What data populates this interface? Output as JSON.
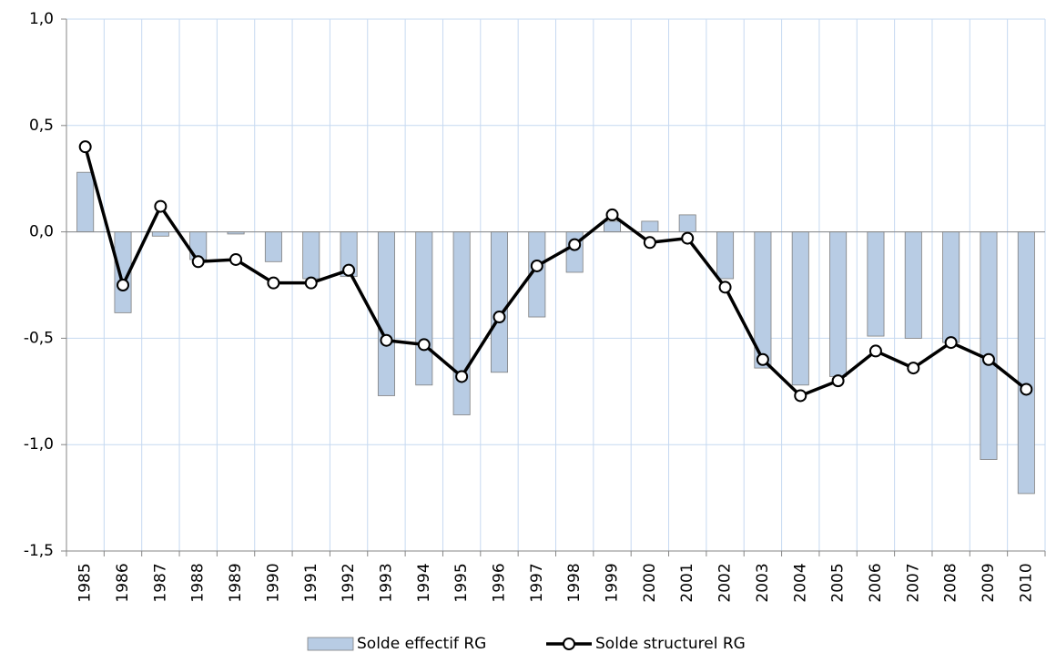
{
  "chart_data": {
    "type": "combo",
    "categories": [
      "1985",
      "1986",
      "1987",
      "1988",
      "1989",
      "1990",
      "1991",
      "1992",
      "1993",
      "1994",
      "1995",
      "1996",
      "1997",
      "1998",
      "1999",
      "2000",
      "2001",
      "2002",
      "2003",
      "2004",
      "2005",
      "2006",
      "2007",
      "2008",
      "2009",
      "2010"
    ],
    "series": [
      {
        "name": "Solde effectif RG",
        "type": "bar",
        "color": "#b8cce4",
        "values": [
          0.28,
          -0.38,
          -0.02,
          -0.13,
          -0.01,
          -0.14,
          -0.22,
          -0.21,
          -0.77,
          -0.72,
          -0.86,
          -0.66,
          -0.4,
          -0.19,
          0.05,
          0.05,
          0.08,
          -0.22,
          -0.64,
          -0.72,
          -0.68,
          -0.49,
          -0.5,
          -0.52,
          -1.07,
          -1.23
        ]
      },
      {
        "name": "Solde structurel RG",
        "type": "line",
        "color": "#000000",
        "values": [
          0.4,
          -0.25,
          0.12,
          -0.14,
          -0.13,
          -0.24,
          -0.24,
          -0.18,
          -0.51,
          -0.53,
          -0.68,
          -0.4,
          -0.16,
          -0.06,
          0.08,
          -0.05,
          -0.03,
          -0.26,
          -0.6,
          -0.77,
          -0.7,
          -0.56,
          -0.64,
          -0.52,
          -0.6,
          -0.74
        ]
      }
    ],
    "ylim": [
      -1.5,
      1.0
    ],
    "yticks": [
      {
        "value": -1.5,
        "label": "-1,5"
      },
      {
        "value": -1.0,
        "label": "-1,0"
      },
      {
        "value": -0.5,
        "label": "-0,5"
      },
      {
        "value": 0,
        "label": "0,0"
      },
      {
        "value": 0.5,
        "label": "0,5"
      },
      {
        "value": 1.0,
        "label": "1,0"
      }
    ],
    "grid": true,
    "legend": "bottom"
  }
}
